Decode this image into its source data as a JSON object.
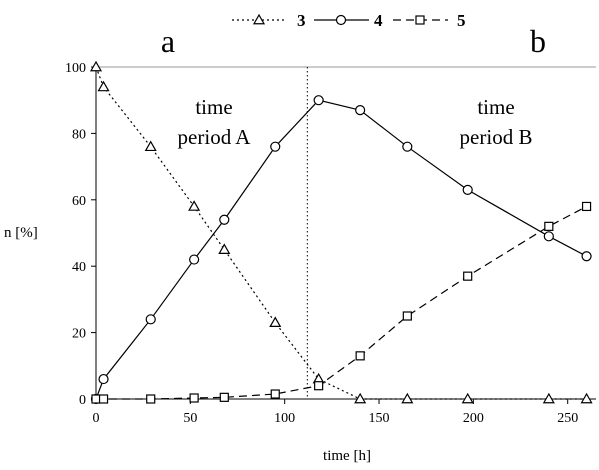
{
  "chart_data": {
    "type": "line",
    "xlabel": "time [h]",
    "ylabel": "n [%]",
    "xlim": [
      0,
      265
    ],
    "ylim": [
      0,
      100
    ],
    "x_ticks": [
      "0",
      "50",
      "100",
      "150",
      "200",
      "250"
    ],
    "y_ticks": [
      "0",
      "20",
      "40",
      "60",
      "80",
      "100"
    ],
    "grid": false,
    "legend_position": "top-center",
    "divider_x": 112,
    "annotations": {
      "panel_a": "a",
      "panel_b": "b",
      "period_a_line1": "time",
      "period_a_line2": "period A",
      "period_b_line1": "time",
      "period_b_line2": "period B"
    },
    "series": [
      {
        "name": "3",
        "marker": "triangle",
        "line_style": "dotted",
        "x": [
          0,
          4,
          29,
          52,
          68,
          95,
          118,
          140,
          165,
          197,
          240,
          260
        ],
        "y": [
          100,
          94,
          76,
          58,
          45,
          23,
          6,
          0,
          0,
          0,
          0,
          0
        ]
      },
      {
        "name": "4",
        "marker": "circle",
        "line_style": "solid",
        "x": [
          0,
          4,
          29,
          52,
          68,
          95,
          118,
          140,
          165,
          197,
          240,
          260
        ],
        "y": [
          0,
          6,
          24,
          42,
          54,
          76,
          90,
          87,
          76,
          63,
          49,
          43
        ]
      },
      {
        "name": "5",
        "marker": "square",
        "line_style": "dashed",
        "x": [
          0,
          4,
          29,
          52,
          68,
          95,
          118,
          140,
          165,
          197,
          240,
          260
        ],
        "y": [
          0,
          0,
          0,
          0.3,
          0.5,
          1.5,
          4,
          13,
          25,
          37,
          52,
          58
        ]
      }
    ]
  }
}
